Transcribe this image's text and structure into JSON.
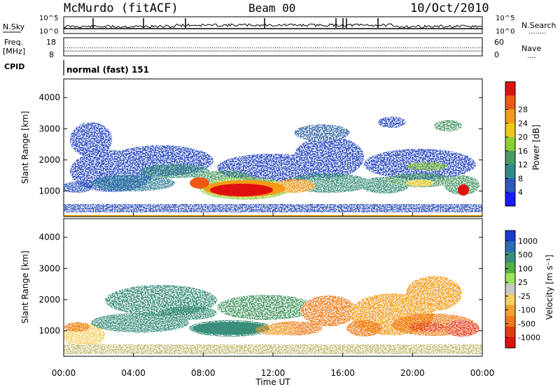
{
  "header": {
    "station": "McMurdo (fitACF)",
    "beam": "Beam 00",
    "date": "10/Oct/2010"
  },
  "top_panels": {
    "nsky_label": "N.Sky",
    "nsearch_label": "N.Search",
    "nsearch_dots": "........",
    "nsky_ticks": [
      "10^5",
      "10^0"
    ],
    "nsearch_ticks": [
      "10^5",
      "10^0"
    ],
    "freq_label": "Freq.",
    "freq_unit": "[MHz]",
    "freq_ticks": [
      "18",
      "8"
    ],
    "nave_label": "Nave",
    "nave_dots": "....",
    "nave_ticks": [
      "60",
      "0"
    ],
    "cpid_label": "CPID",
    "cpid_text": "normal (fast) 151"
  },
  "chart_data": [
    {
      "type": "heatmap",
      "name": "power",
      "ylabel": "Slant Range [km]",
      "xlabel": "",
      "xticks": [
        "00:00",
        "04:00",
        "08:00",
        "12:00",
        "16:00",
        "20:00",
        "00:00"
      ],
      "yticks": [
        1000,
        2000,
        3000,
        4000
      ],
      "ylim": [
        180,
        4600
      ],
      "colorbar_label": "Power [dB]",
      "colorbar_ticks": [
        "4",
        "8",
        "12",
        "16",
        "20",
        "24",
        "28"
      ],
      "colors": [
        "#1a1aff",
        "#2e58c0",
        "#2f8a8a",
        "#4a9a63",
        "#8ccf35",
        "#f0c818",
        "#f59a18",
        "#ee5a14",
        "#e01010"
      ]
    },
    {
      "type": "heatmap",
      "name": "velocity",
      "ylabel": "Slant Range [km]",
      "xlabel": "Time UT",
      "xticks": [
        "00:00",
        "04:00",
        "08:00",
        "12:00",
        "16:00",
        "20:00",
        "00:00"
      ],
      "yticks": [
        1000,
        2000,
        3000,
        4000
      ],
      "ylim": [
        180,
        4600
      ],
      "colorbar_label": "Velocity [m s⁻¹]",
      "colorbar_ticks": [
        "1000",
        "500",
        "100",
        "25",
        "-25",
        "-100",
        "-500",
        "-1000"
      ],
      "colors": [
        "#1a3ad0",
        "#2a6fb8",
        "#3a8f7a",
        "#4fae45",
        "#9de35a",
        "#c8c8c8",
        "#f5cf60",
        "#f5a030",
        "#f07a18",
        "#e83a12",
        "#e01010"
      ]
    }
  ]
}
